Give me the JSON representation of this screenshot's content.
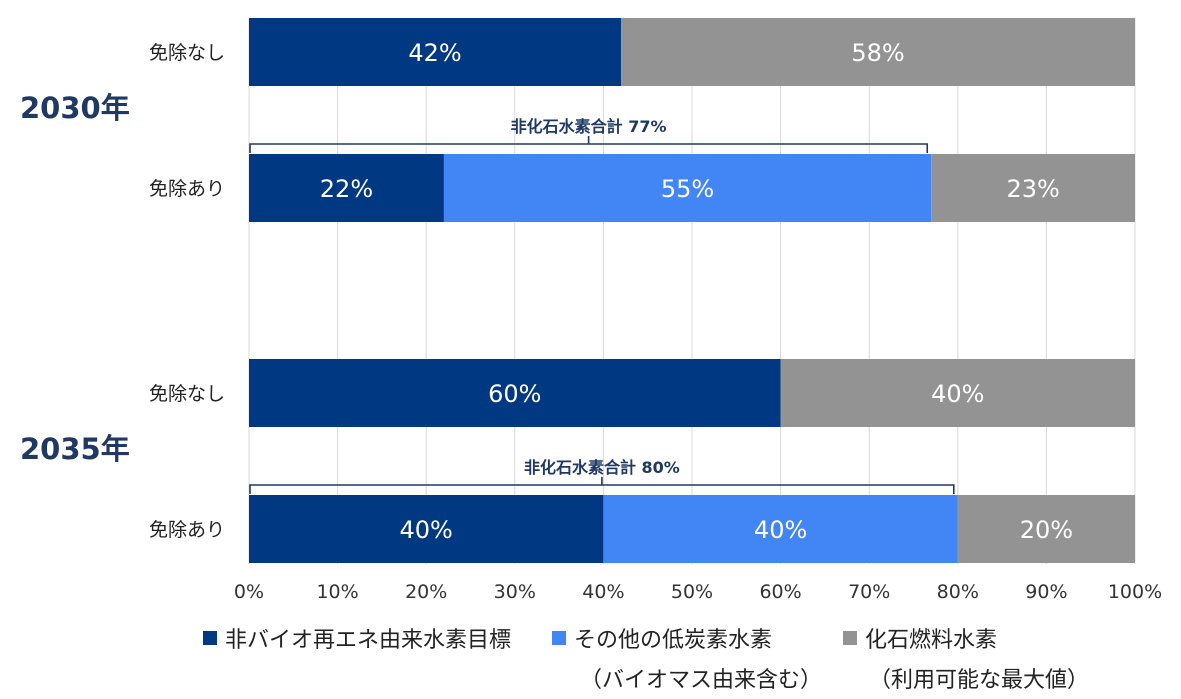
{
  "chart_data": {
    "type": "bar",
    "orientation": "horizontal",
    "stacked": true,
    "xlim": [
      0,
      100
    ],
    "x_ticks": [
      "0%",
      "10%",
      "20%",
      "30%",
      "40%",
      "50%",
      "60%",
      "70%",
      "80%",
      "90%",
      "100%"
    ],
    "groups": [
      {
        "label": "2030年",
        "rows": [
          {
            "label": "免除なし",
            "segments": [
              {
                "series": 0,
                "value": 42,
                "label": "42%"
              },
              {
                "series": 2,
                "value": 58,
                "label": "58%"
              }
            ]
          },
          {
            "label": "免除あり",
            "segments": [
              {
                "series": 0,
                "value": 22,
                "label": "22%"
              },
              {
                "series": 1,
                "value": 55,
                "label": "55%"
              },
              {
                "series": 2,
                "value": 23,
                "label": "23%"
              }
            ]
          }
        ],
        "bracket": {
          "from": 0,
          "to": 77,
          "label": "非化石水素合計 77%"
        }
      },
      {
        "label": "2035年",
        "rows": [
          {
            "label": "免除なし",
            "segments": [
              {
                "series": 0,
                "value": 60,
                "label": "60%"
              },
              {
                "series": 2,
                "value": 40,
                "label": "40%"
              }
            ]
          },
          {
            "label": "免除あり",
            "segments": [
              {
                "series": 0,
                "value": 40,
                "label": "40%"
              },
              {
                "series": 1,
                "value": 40,
                "label": "40%"
              },
              {
                "series": 2,
                "value": 20,
                "label": "20%"
              }
            ]
          }
        ],
        "bracket": {
          "from": 0,
          "to": 80,
          "label": "非化石水素合計 80%"
        }
      }
    ],
    "series": [
      {
        "name": "非バイオ再エネ由来水素目標",
        "sub": "",
        "color": "#003882"
      },
      {
        "name": "その他の低炭素水素",
        "sub": "（バイオマス由来含む）",
        "color": "#4285f4"
      },
      {
        "name": "化石燃料水素",
        "sub": "（利用可能な最大値）",
        "color": "#939393"
      }
    ],
    "colors": {
      "group_label": "#1f3864",
      "bracket": "#1f3864",
      "grid": "#d9d9d9"
    },
    "grid": true,
    "legend_position": "bottom"
  }
}
